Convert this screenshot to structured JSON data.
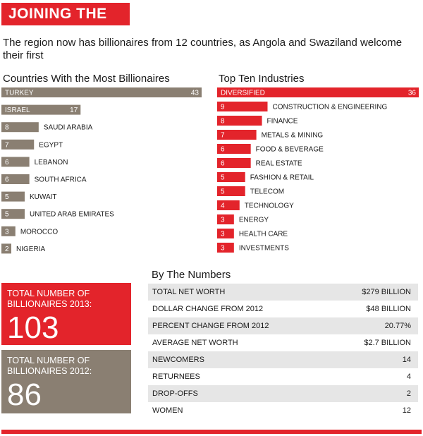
{
  "banner": "JOINING THE CLUB",
  "subtitle": "The region now has billionaires from 12 countries, as Angola and Swaziland welcome their first",
  "colors": {
    "red": "#e3242b",
    "taupe": "#8a7f72"
  },
  "chart_data": [
    {
      "type": "bar",
      "title": "Countries With the Most Billionaires",
      "categories": [
        "TURKEY",
        "ISRAEL",
        "SAUDI ARABIA",
        "EGYPT",
        "LEBANON",
        "SOUTH AFRICA",
        "KUWAIT",
        "UNITED ARAB EMIRATES",
        "MOROCCO",
        "NIGERIA"
      ],
      "values": [
        43,
        17,
        8,
        7,
        6,
        6,
        5,
        5,
        3,
        2
      ],
      "value_labels": [
        "43",
        "17",
        "8",
        "7",
        "6",
        "6",
        "5",
        "5",
        "3",
        "2"
      ],
      "color": "#8a7f72",
      "xlim": [
        0,
        43
      ]
    },
    {
      "type": "bar",
      "title": "Top Ten Industries",
      "categories": [
        "DIVERSIFIED",
        "CONSTRUCTION & ENGINEERING",
        "FINANCE",
        "METALS & MINING",
        "FOOD & BEVERAGE",
        "REAL ESTATE",
        "FASHION & RETAIL",
        "TELECOM",
        "TECHNOLOGY",
        "ENERGY",
        "HEALTH CARE",
        "INVESTMENTS"
      ],
      "values": [
        36,
        9,
        8,
        7,
        6,
        6,
        5,
        5,
        4,
        3,
        3,
        3
      ],
      "value_labels": [
        "36",
        "9",
        "8",
        "7",
        "6",
        "6",
        "5",
        "5",
        "4",
        "3",
        "3",
        "3"
      ],
      "color": "#e3242b",
      "xlim": [
        0,
        36
      ]
    }
  ],
  "box2013": {
    "label": "TOTAL NUMBER OF BILLIONAIRES 2013:",
    "value": "103"
  },
  "box2012": {
    "label": "TOTAL NUMBER OF BILLIONAIRES 2012:",
    "value": "86"
  },
  "numbers": {
    "title": "By The Numbers",
    "rows": [
      {
        "label": "TOTAL NET WORTH",
        "value": "$279 BILLION"
      },
      {
        "label": "DOLLAR CHANGE FROM 2012",
        "value": "$48 BILLION"
      },
      {
        "label": "PERCENT CHANGE FROM 2012",
        "value": "20.77%"
      },
      {
        "label": "AVERAGE NET WORTH",
        "value": "$2.7 BILLION"
      },
      {
        "label": "NEWCOMERS",
        "value": "14"
      },
      {
        "label": "RETURNEES",
        "value": "4"
      },
      {
        "label": "DROP-OFFS",
        "value": "2"
      },
      {
        "label": "WOMEN",
        "value": "12"
      }
    ]
  }
}
